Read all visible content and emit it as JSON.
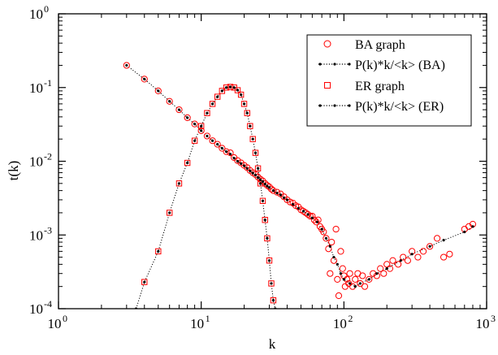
{
  "chart_data": {
    "type": "scatter",
    "title": "",
    "xlabel": "k",
    "ylabel": "t(k)",
    "x_scale": "log",
    "y_scale": "log",
    "xlim": [
      1,
      1000
    ],
    "ylim": [
      0.0001,
      1
    ],
    "x_ticks": [
      {
        "value": 1,
        "base": "10",
        "exp": "0"
      },
      {
        "value": 10,
        "base": "10",
        "exp": "1"
      },
      {
        "value": 100,
        "base": "10",
        "exp": "2"
      },
      {
        "value": 1000,
        "base": "10",
        "exp": "3"
      }
    ],
    "y_ticks": [
      {
        "value": 0.0001,
        "base": "10",
        "exp": "-4"
      },
      {
        "value": 0.001,
        "base": "10",
        "exp": "-3"
      },
      {
        "value": 0.01,
        "base": "10",
        "exp": "-2"
      },
      {
        "value": 0.1,
        "base": "10",
        "exp": "-1"
      },
      {
        "value": 1,
        "base": "10",
        "exp": "0"
      }
    ],
    "grid": false,
    "legend_position": "top-right",
    "colors": {
      "red": "#ff0000",
      "black": "#000000"
    },
    "series": [
      {
        "name": "BA graph",
        "marker": "circle-open",
        "color": "#ff0000",
        "points": [
          [
            3,
            0.2
          ],
          [
            4,
            0.13
          ],
          [
            5,
            0.09
          ],
          [
            6,
            0.065
          ],
          [
            7,
            0.05
          ],
          [
            8,
            0.039
          ],
          [
            9,
            0.032
          ],
          [
            10,
            0.026
          ],
          [
            11,
            0.022
          ],
          [
            12,
            0.019
          ],
          [
            13,
            0.017
          ],
          [
            14,
            0.015
          ],
          [
            15,
            0.0135
          ],
          [
            16,
            0.013
          ],
          [
            17,
            0.0112
          ],
          [
            18,
            0.0102
          ],
          [
            19,
            0.0095
          ],
          [
            20,
            0.0088
          ],
          [
            21,
            0.0082
          ],
          [
            22,
            0.0075
          ],
          [
            23,
            0.007
          ],
          [
            24,
            0.0066
          ],
          [
            25,
            0.0061
          ],
          [
            26,
            0.0057
          ],
          [
            27,
            0.0054
          ],
          [
            28,
            0.005
          ],
          [
            29,
            0.0047
          ],
          [
            30,
            0.0045
          ],
          [
            31,
            0.0042
          ],
          [
            32,
            0.004
          ],
          [
            34,
            0.0038
          ],
          [
            36,
            0.0036
          ],
          [
            38,
            0.0033
          ],
          [
            40,
            0.003
          ],
          [
            42,
            0.0028
          ],
          [
            44,
            0.0027
          ],
          [
            46,
            0.0025
          ],
          [
            48,
            0.0024
          ],
          [
            50,
            0.0022
          ],
          [
            52,
            0.0021
          ],
          [
            54,
            0.002
          ],
          [
            56,
            0.0019
          ],
          [
            58,
            0.0018
          ],
          [
            60,
            0.0018
          ],
          [
            62,
            0.0016
          ],
          [
            64,
            0.0015
          ],
          [
            66,
            0.0016
          ],
          [
            68,
            0.0013
          ],
          [
            70,
            0.0012
          ],
          [
            72,
            0.0011
          ],
          [
            75,
            0.0009
          ],
          [
            78,
            0.00065
          ],
          [
            80,
            0.0003
          ],
          [
            82,
            0.0008
          ],
          [
            85,
            0.00045
          ],
          [
            88,
            0.0012
          ],
          [
            90,
            0.00025
          ],
          [
            92,
            0.00015
          ],
          [
            95,
            0.0006
          ],
          [
            98,
            0.00035
          ],
          [
            100,
            0.00028
          ],
          [
            102,
            0.0002
          ],
          [
            105,
            0.00025
          ],
          [
            108,
            0.00022
          ],
          [
            110,
            0.0003
          ],
          [
            115,
            0.0002
          ],
          [
            120,
            0.00025
          ],
          [
            125,
            0.0003
          ],
          [
            130,
            0.00022
          ],
          [
            135,
            0.00028
          ],
          [
            140,
            0.0002
          ],
          [
            150,
            0.00025
          ],
          [
            160,
            0.0003
          ],
          [
            170,
            0.00028
          ],
          [
            180,
            0.00035
          ],
          [
            190,
            0.0003
          ],
          [
            200,
            0.0004
          ],
          [
            210,
            0.00035
          ],
          [
            220,
            0.00045
          ],
          [
            240,
            0.0004
          ],
          [
            260,
            0.0005
          ],
          [
            280,
            0.00045
          ],
          [
            300,
            0.0006
          ],
          [
            330,
            0.0005
          ],
          [
            360,
            0.0006
          ],
          [
            400,
            0.0007
          ],
          [
            450,
            0.0009
          ],
          [
            500,
            0.0005
          ],
          [
            550,
            0.00055
          ],
          [
            700,
            0.0012
          ],
          [
            750,
            0.0013
          ],
          [
            800,
            0.0014
          ]
        ]
      },
      {
        "name": "P(k)*k/<k> (BA)",
        "marker": "dot-dotted-line",
        "color": "#000000",
        "points": [
          [
            3,
            0.2
          ],
          [
            4,
            0.13
          ],
          [
            5,
            0.09
          ],
          [
            6,
            0.065
          ],
          [
            7,
            0.05
          ],
          [
            8,
            0.039
          ],
          [
            9,
            0.032
          ],
          [
            10,
            0.026
          ],
          [
            11,
            0.022
          ],
          [
            12,
            0.019
          ],
          [
            13,
            0.017
          ],
          [
            14,
            0.015
          ],
          [
            15,
            0.0135
          ],
          [
            16,
            0.0125
          ],
          [
            17,
            0.011
          ],
          [
            18,
            0.01
          ],
          [
            19,
            0.0093
          ],
          [
            20,
            0.0087
          ],
          [
            21,
            0.008
          ],
          [
            22,
            0.0074
          ],
          [
            23,
            0.0069
          ],
          [
            24,
            0.0065
          ],
          [
            25,
            0.006
          ],
          [
            26,
            0.0056
          ],
          [
            27,
            0.0053
          ],
          [
            28,
            0.0049
          ],
          [
            29,
            0.0046
          ],
          [
            30,
            0.0044
          ],
          [
            32,
            0.004
          ],
          [
            34,
            0.0037
          ],
          [
            36,
            0.0035
          ],
          [
            38,
            0.0032
          ],
          [
            40,
            0.003
          ],
          [
            44,
            0.0026
          ],
          [
            48,
            0.0023
          ],
          [
            52,
            0.0021
          ],
          [
            56,
            0.0019
          ],
          [
            60,
            0.0017
          ],
          [
            65,
            0.0015
          ],
          [
            70,
            0.0012
          ],
          [
            75,
            0.0009
          ],
          [
            80,
            0.0007
          ],
          [
            85,
            0.0005
          ],
          [
            90,
            0.0004
          ],
          [
            95,
            0.0003
          ],
          [
            100,
            0.00025
          ],
          [
            110,
            0.00022
          ],
          [
            120,
            0.0002
          ],
          [
            130,
            0.00022
          ],
          [
            150,
            0.00025
          ],
          [
            170,
            0.0003
          ],
          [
            200,
            0.00035
          ],
          [
            250,
            0.00045
          ],
          [
            300,
            0.00055
          ],
          [
            400,
            0.0007
          ],
          [
            500,
            0.00085
          ],
          [
            700,
            0.0011
          ],
          [
            800,
            0.0013
          ]
        ]
      },
      {
        "name": "ER graph",
        "marker": "square-open",
        "color": "#ff0000",
        "points": [
          [
            4,
            0.00023
          ],
          [
            5,
            0.0006
          ],
          [
            6,
            0.002
          ],
          [
            7,
            0.005
          ],
          [
            8,
            0.0095
          ],
          [
            9,
            0.019
          ],
          [
            10,
            0.03
          ],
          [
            11,
            0.045
          ],
          [
            12,
            0.06
          ],
          [
            13,
            0.075
          ],
          [
            14,
            0.09
          ],
          [
            15,
            0.1
          ],
          [
            16,
            0.102
          ],
          [
            17,
            0.1
          ],
          [
            18,
            0.092
          ],
          [
            19,
            0.08
          ],
          [
            20,
            0.06
          ],
          [
            21,
            0.045
          ],
          [
            22,
            0.03
          ],
          [
            23,
            0.02
          ],
          [
            24,
            0.013
          ],
          [
            25,
            0.008
          ],
          [
            26,
            0.005
          ],
          [
            27,
            0.0029
          ],
          [
            28,
            0.0016
          ],
          [
            29,
            0.0009
          ],
          [
            30,
            0.00045
          ],
          [
            31,
            0.00022
          ],
          [
            32,
            0.00013
          ]
        ]
      },
      {
        "name": "P(k)*k/<k> (ER)",
        "marker": "dot-dotted-line",
        "color": "#000000",
        "points": [
          [
            3.5,
            0.0001
          ],
          [
            4,
            0.00023
          ],
          [
            5,
            0.0006
          ],
          [
            6,
            0.002
          ],
          [
            7,
            0.005
          ],
          [
            8,
            0.0095
          ],
          [
            9,
            0.019
          ],
          [
            10,
            0.03
          ],
          [
            11,
            0.045
          ],
          [
            12,
            0.06
          ],
          [
            13,
            0.075
          ],
          [
            14,
            0.09
          ],
          [
            15,
            0.1
          ],
          [
            16,
            0.102
          ],
          [
            17,
            0.1
          ],
          [
            18,
            0.092
          ],
          [
            19,
            0.08
          ],
          [
            20,
            0.06
          ],
          [
            21,
            0.045
          ],
          [
            22,
            0.03
          ],
          [
            23,
            0.02
          ],
          [
            24,
            0.013
          ],
          [
            25,
            0.008
          ],
          [
            26,
            0.005
          ],
          [
            27,
            0.0029
          ],
          [
            28,
            0.0016
          ],
          [
            29,
            0.0009
          ],
          [
            30,
            0.00045
          ],
          [
            31,
            0.00022
          ],
          [
            32,
            0.00013
          ],
          [
            33,
            0.0001
          ]
        ]
      }
    ]
  }
}
